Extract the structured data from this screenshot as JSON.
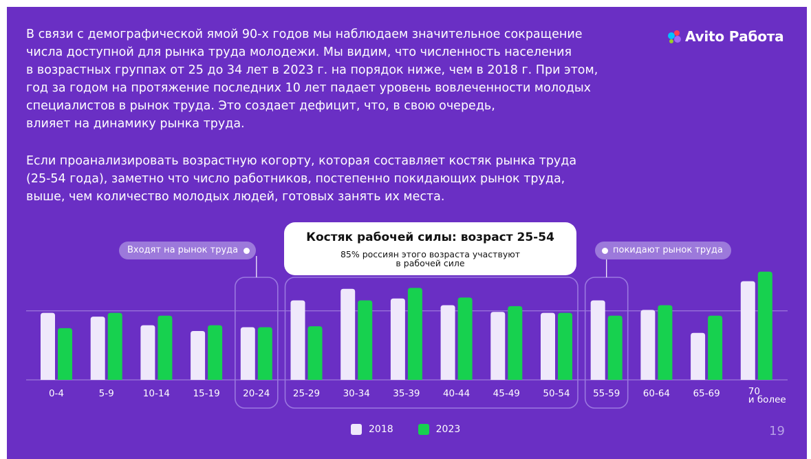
{
  "text": {
    "paragraph1": "В связи с демографической ямой 90-х годов мы наблюдаем значительное сокращение\nчисла доступной для рынка труда молодежи. Мы видим, что численность населения\nв возрастных группах от 25 до 34 лет в 2023 г. на порядок ниже, чем в 2018 г. При этом,\nгод за годом на протяжение последних 10 лет падает уровень вовлеченности молодых\nспециалистов в рынок труда. Это создает дефицит, что, в свою очередь,\nвлияет на динамику рынка труда.",
    "paragraph2": "Если проанализировать возрастную когорту, которая составляет костяк рынка труда\n(25-54 года), заметно что число работников, постепенно покидающих рынок труда,\nвыше, чем количество молодых людей, готовых занять их места."
  },
  "logo": {
    "text": "Avito Работа"
  },
  "annotations": {
    "enter_label": "Входят на рынок труда",
    "leave_label": "покидают рынок труда",
    "callout_title": "Костяк рабочей силы: возраст 25-54",
    "callout_subtitle": "85% россиян этого возраста участвуют\nв рабочей силе"
  },
  "page_number": "19",
  "colors": {
    "background": "#6a2fc4",
    "series_2018": "#efe8fb",
    "series_2023": "#17d14f",
    "frame": "#9b78e0",
    "gridline": "#a98ae0"
  },
  "chart_data": {
    "type": "bar",
    "categories": [
      "0-4",
      "5-9",
      "10-14",
      "15-19",
      "20-24",
      "25-29",
      "30-34",
      "35-39",
      "40-44",
      "45-49",
      "50-54",
      "55-59",
      "60-64",
      "65-69",
      "70\nи более"
    ],
    "series": [
      {
        "name": "2018",
        "values": [
          7.0,
          6.6,
          5.7,
          5.1,
          5.5,
          8.3,
          9.5,
          8.5,
          7.8,
          7.1,
          7.0,
          8.3,
          7.3,
          4.9,
          10.3
        ]
      },
      {
        "name": "2023",
        "values": [
          5.4,
          7.0,
          6.7,
          5.7,
          5.5,
          5.6,
          8.3,
          9.6,
          8.6,
          7.7,
          7.0,
          6.7,
          7.8,
          6.7,
          11.3
        ]
      }
    ],
    "ylim": [
      0,
      12
    ],
    "reference_line": 7.2,
    "highlight_groups": [
      {
        "name": "enter",
        "categories": [
          "20-24"
        ]
      },
      {
        "name": "core",
        "categories": [
          "25-29",
          "30-34",
          "35-39",
          "40-44",
          "45-49",
          "50-54"
        ]
      },
      {
        "name": "leave",
        "categories": [
          "55-59"
        ]
      }
    ],
    "grid": false,
    "legend": "bottom"
  }
}
